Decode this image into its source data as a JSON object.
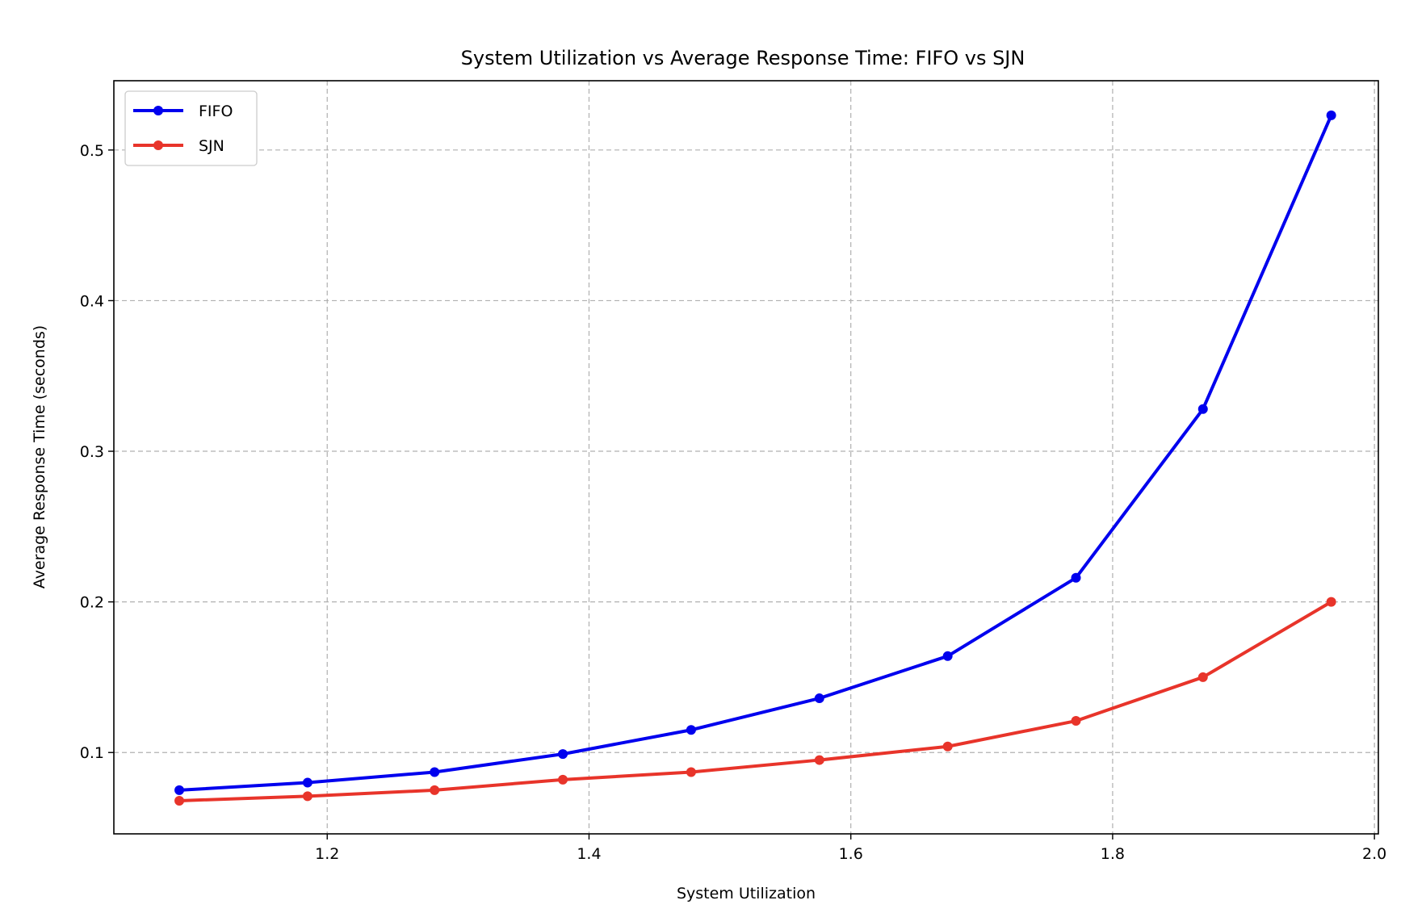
{
  "chart_data": {
    "type": "line",
    "title": "System Utilization vs Average Response Time: FIFO vs SJN",
    "xlabel": "System Utilization",
    "ylabel": "Average Response Time (seconds)",
    "xlim": [
      1.037,
      2.003
    ],
    "ylim": [
      0.046,
      0.546
    ],
    "xticks": [
      1.2,
      1.4,
      1.6,
      1.8,
      2.0
    ],
    "xtick_labels": [
      "1.2",
      "1.4",
      "1.6",
      "1.8",
      "2.0"
    ],
    "yticks": [
      0.1,
      0.2,
      0.3,
      0.4,
      0.5
    ],
    "ytick_labels": [
      "0.1",
      "0.2",
      "0.3",
      "0.4",
      "0.5"
    ],
    "grid": true,
    "legend_position": "top-left",
    "x": [
      1.087,
      1.185,
      1.282,
      1.38,
      1.478,
      1.576,
      1.674,
      1.772,
      1.869,
      1.967
    ],
    "series": [
      {
        "name": "FIFO",
        "color": "#0000ee",
        "values": [
          0.075,
          0.08,
          0.087,
          0.099,
          0.115,
          0.136,
          0.164,
          0.216,
          0.328,
          0.523
        ]
      },
      {
        "name": "SJN",
        "color": "#e8342a",
        "values": [
          0.068,
          0.071,
          0.075,
          0.082,
          0.087,
          0.095,
          0.104,
          0.121,
          0.15,
          0.2
        ]
      }
    ]
  }
}
